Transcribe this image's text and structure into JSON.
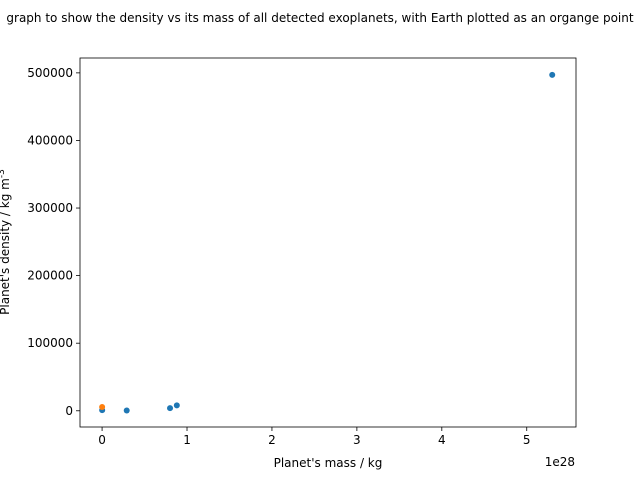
{
  "chart_data": {
    "type": "scatter",
    "title": "graph to show the density vs its mass of all detected exoplanets, with Earth plotted as an organge point",
    "xlabel": "Planet's mass / kg",
    "ylabel": "Planet's density / kg m^-3",
    "x_offset_text": "1e28",
    "xlim": [
      -2.6e+27,
      5.58e+28
    ],
    "ylim": [
      -24000,
      522000
    ],
    "x_ticks": [
      0,
      1e+28,
      2e+28,
      3e+28,
      4e+28,
      5e+28
    ],
    "x_tick_labels": [
      "0",
      "1",
      "2",
      "3",
      "4",
      "5"
    ],
    "y_ticks": [
      0,
      100000,
      200000,
      300000,
      400000,
      500000
    ],
    "y_tick_labels": [
      "0",
      "100000",
      "200000",
      "300000",
      "400000",
      "500000"
    ],
    "grid": false,
    "series": [
      {
        "color": "#1f77b4",
        "points": [
          [
            1e+25,
            1000
          ],
          [
            2.9e+27,
            500
          ],
          [
            8e+27,
            4000
          ],
          [
            8.8e+27,
            8000
          ],
          [
            5.3e+28,
            497000
          ]
        ]
      },
      {
        "color": "#ff7f0e",
        "points": [
          [
            5.97e+24,
            5514
          ]
        ]
      }
    ]
  }
}
